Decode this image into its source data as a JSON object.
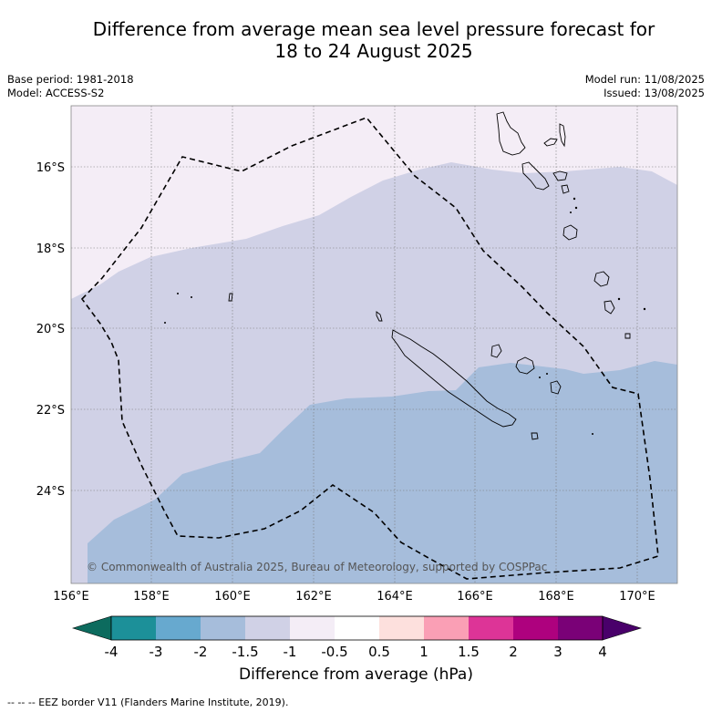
{
  "title": {
    "line1": "Difference from average mean sea level pressure forecast for",
    "line2": "18 to 24 August 2025"
  },
  "meta": {
    "base_period": "Base period: 1981-2018",
    "model": "Model: ACCESS-S2",
    "model_run": "Model run: 11/08/2025",
    "issued": "Issued: 13/08/2025"
  },
  "map": {
    "lat_labels": [
      "16°S",
      "18°S",
      "20°S",
      "22°S",
      "24°S"
    ],
    "lon_labels": [
      "156°E",
      "158°E",
      "160°E",
      "162°E",
      "164°E",
      "166°E",
      "168°E",
      "170°E"
    ],
    "copyright": "© Commonwealth of Australia 2025, Bureau of Meteorology, supported by COSPPac",
    "region_colors": {
      "-1_to_-0.5": "#f4edf6",
      "-1.5_to_-1": "#d0d1e6",
      "-2_to_-1.5": "#a6bddb"
    }
  },
  "colorbar": {
    "ticks": [
      "-4",
      "-3",
      "-2",
      "-1.5",
      "-1",
      "-0.5",
      "0.5",
      "1",
      "1.5",
      "2",
      "3",
      "4"
    ],
    "colors": [
      "#0c6b5e",
      "#1c9099",
      "#67a9cf",
      "#a6bddb",
      "#d0d1e6",
      "#f4edf6",
      "#ffffff",
      "#fde0dd",
      "#fa9fb5",
      "#dd3497",
      "#ae017e",
      "#7a0177",
      "#49006a"
    ],
    "label": "Difference from average (hPa)"
  },
  "footer": {
    "legend": "-- -- -- EEZ border V11 (Flanders Marine Institute, 2019)."
  }
}
